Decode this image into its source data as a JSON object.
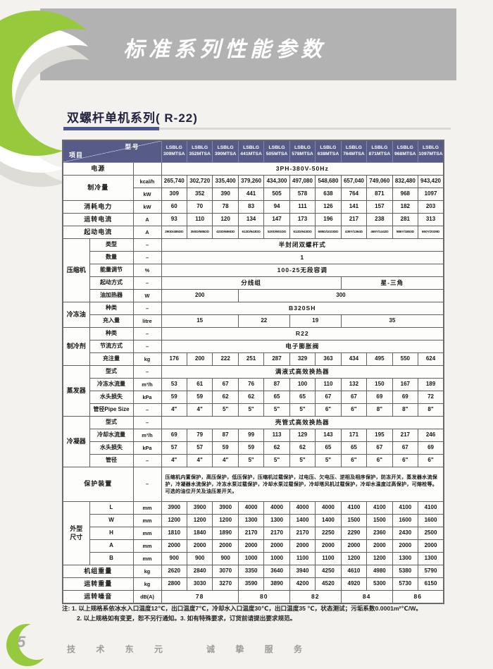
{
  "page": {
    "banner_title": "标准系列性能参数",
    "section_title": "双螺杆单机系列( R-22)",
    "page_number": "5",
    "footer_text": "技 术 东 元   诚 挚 服 务"
  },
  "colors": {
    "header_bg": "#565b87",
    "banner_gray": "#b2b2b2",
    "accent_green": "#97c93d",
    "rule_dark": "#4d5590"
  },
  "table": {
    "corner_top": "型号",
    "corner_bottom": "项目",
    "brand": "LSBLG",
    "models": [
      "309MTSA",
      "352MTSA",
      "390MTSA",
      "441MTSA",
      "505MTSA",
      "578MTSA",
      "638MTSA",
      "764MTSA",
      "871MTSA",
      "968MTSA",
      "1097MTSA"
    ],
    "rows": [
      [
        {
          "t": "电源",
          "c": 2,
          "k": "lbl",
          "n": "row-label-power"
        },
        {
          "t": "",
          "k": "unit"
        },
        {
          "t": "3PH-380V-50Hz",
          "c": 11,
          "k": "b"
        }
      ],
      [
        {
          "t": "制冷量",
          "c": 2,
          "r": 2,
          "k": "lbl",
          "n": "row-label-cooling-capacity"
        },
        {
          "t": "kcal/h",
          "k": "unit"
        },
        "265,740",
        "302,720",
        "335,400",
        "379,260",
        "434,300",
        "497,080",
        "548,680",
        "657,040",
        "749,060",
        "832,480",
        "943,420"
      ],
      [
        {
          "t": "kW",
          "k": "unit"
        },
        "309",
        "352",
        "390",
        "441",
        "505",
        "578",
        "638",
        "764",
        "871",
        "968",
        "1097"
      ],
      [
        {
          "t": "消耗电力",
          "c": 2,
          "k": "lbl",
          "n": "row-label-power-consumption"
        },
        {
          "t": "kW",
          "k": "unit"
        },
        "60",
        "70",
        "78",
        "83",
        "94",
        "111",
        "126",
        "141",
        "157",
        "182",
        "203"
      ],
      [
        {
          "t": "运转电流",
          "c": 2,
          "k": "lbl",
          "n": "row-label-running-current"
        },
        {
          "t": "A",
          "k": "unit"
        },
        "93",
        "110",
        "120",
        "134",
        "147",
        "173",
        "196",
        "217",
        "238",
        "281",
        "313"
      ],
      [
        {
          "t": "起动电流",
          "c": 2,
          "k": "lbl",
          "n": "row-label-starting-current"
        },
        {
          "t": "A",
          "k": "unit"
        },
        {
          "t": "290D/485DD",
          "k": "tiny"
        },
        {
          "t": "350D/585DD",
          "k": "tiny"
        },
        {
          "t": "423D/686DD",
          "k": "tiny"
        },
        {
          "t": "612D/943DD",
          "k": "tiny"
        },
        {
          "t": "520D/801DD",
          "k": "tiny"
        },
        {
          "t": "612D/943DD",
          "k": "tiny"
        },
        {
          "t": "685D/1023DD",
          "k": "tiny"
        },
        {
          "t": "436Y/1364D",
          "k": "tiny"
        },
        {
          "t": "465Y/1442D",
          "k": "tiny"
        },
        {
          "t": "586Y/1853D",
          "k": "tiny"
        },
        {
          "t": "650Y/2029D",
          "k": "tiny"
        }
      ],
      [
        {
          "t": "压缩机",
          "r": 5,
          "k": "grp",
          "n": "group-label-compressor"
        },
        {
          "t": "类型",
          "k": "lbl2"
        },
        {
          "t": "–",
          "k": "unit"
        },
        {
          "t": "半封闭双螺杆式",
          "c": 11,
          "k": "b"
        }
      ],
      [
        {
          "t": "数量",
          "k": "lbl2"
        },
        {
          "t": "–",
          "k": "unit"
        },
        {
          "t": "1",
          "c": 11,
          "k": "b"
        }
      ],
      [
        {
          "t": "能量调节",
          "k": "lbl2"
        },
        {
          "t": "%",
          "k": "unit"
        },
        {
          "t": "100-25无段容调",
          "c": 11,
          "k": "b"
        }
      ],
      [
        {
          "t": "起动方式",
          "k": "lbl2"
        },
        {
          "t": "–",
          "k": "unit"
        },
        {
          "t": "分线组",
          "c": 7,
          "k": "b"
        },
        {
          "t": "星-三角",
          "c": 4,
          "k": "b"
        }
      ],
      [
        {
          "t": "油加热器",
          "k": "lbl2"
        },
        {
          "t": "W",
          "k": "unit"
        },
        {
          "t": "200",
          "c": 3
        },
        {
          "t": "300",
          "c": 8
        }
      ],
      [
        {
          "t": "冷冻油",
          "r": 2,
          "k": "grp",
          "n": "group-label-refrigerant-oil"
        },
        {
          "t": "种类",
          "k": "lbl2"
        },
        {
          "t": "–",
          "k": "unit"
        },
        {
          "t": "B320SH",
          "c": 11,
          "k": "b"
        }
      ],
      [
        {
          "t": "充入量",
          "k": "lbl2"
        },
        {
          "t": "litre",
          "k": "unit"
        },
        {
          "t": "15",
          "c": 3
        },
        {
          "t": "22",
          "c": 2
        },
        {
          "t": "19",
          "c": 2
        },
        {
          "t": "35",
          "c": 4
        }
      ],
      [
        {
          "t": "制冷剂",
          "r": 3,
          "k": "grp",
          "n": "group-label-refrigerant"
        },
        {
          "t": "种类",
          "k": "lbl2"
        },
        {
          "t": "–",
          "k": "unit"
        },
        {
          "t": "R22",
          "c": 11,
          "k": "b"
        }
      ],
      [
        {
          "t": "节流方式",
          "k": "lbl2"
        },
        {
          "t": "–",
          "k": "unit"
        },
        {
          "t": "电子膨胀阀",
          "c": 11,
          "k": "b"
        }
      ],
      [
        {
          "t": "充注量",
          "k": "lbl2"
        },
        {
          "t": "kg",
          "k": "unit"
        },
        "176",
        "200",
        "222",
        "251",
        "287",
        "329",
        "363",
        "434",
        "495",
        "550",
        "624"
      ],
      [
        {
          "t": "蒸发器",
          "r": 4,
          "k": "grp",
          "n": "group-label-evaporator"
        },
        {
          "t": "型式",
          "k": "lbl2"
        },
        {
          "t": "–",
          "k": "unit"
        },
        {
          "t": "满液式高效换热器",
          "c": 11,
          "k": "b"
        }
      ],
      [
        {
          "t": "冷冻水流量",
          "k": "lbl2"
        },
        {
          "t": "m³/h",
          "k": "unit"
        },
        "53",
        "61",
        "67",
        "76",
        "87",
        "100",
        "110",
        "132",
        "150",
        "167",
        "189"
      ],
      [
        {
          "t": "水头损失",
          "k": "lbl2"
        },
        {
          "t": "kPa",
          "k": "unit"
        },
        "59",
        "59",
        "62",
        "62",
        "65",
        "65",
        "67",
        "67",
        "69",
        "69",
        "72"
      ],
      [
        {
          "t": "管径Pipe Size",
          "k": "lbl2"
        },
        {
          "t": "–",
          "k": "unit"
        },
        {
          "t": "4\"",
          "k": "pipe"
        },
        {
          "t": "4\"",
          "k": "pipe"
        },
        {
          "t": "5\"",
          "k": "pipe"
        },
        {
          "t": "5\"",
          "k": "pipe"
        },
        {
          "t": "5\"",
          "k": "pipe"
        },
        {
          "t": "5\"",
          "k": "pipe"
        },
        {
          "t": "6\"",
          "k": "pipe"
        },
        {
          "t": "6\"",
          "k": "pipe"
        },
        {
          "t": "8\"",
          "k": "pipe"
        },
        {
          "t": "8\"",
          "k": "pipe"
        },
        {
          "t": "8\"",
          "k": "pipe"
        }
      ],
      [
        {
          "t": "冷凝器",
          "r": 4,
          "k": "grp",
          "n": "group-label-condenser"
        },
        {
          "t": "型式",
          "k": "lbl2"
        },
        {
          "t": "–",
          "k": "unit"
        },
        {
          "t": "壳管式高效换热器",
          "c": 11,
          "k": "b"
        }
      ],
      [
        {
          "t": "冷却水流量",
          "k": "lbl2"
        },
        {
          "t": "m³/h",
          "k": "unit"
        },
        "69",
        "79",
        "87",
        "99",
        "113",
        "129",
        "143",
        "171",
        "195",
        "217",
        "246"
      ],
      [
        {
          "t": "水头损失",
          "k": "lbl2"
        },
        {
          "t": "kPa",
          "k": "unit"
        },
        "57",
        "57",
        "59",
        "59",
        "62",
        "62",
        "65",
        "65",
        "67",
        "67",
        "69"
      ],
      [
        {
          "t": "管径",
          "k": "lbl2"
        },
        {
          "t": "–",
          "k": "unit"
        },
        {
          "t": "4\"",
          "k": "pipe"
        },
        {
          "t": "4\"",
          "k": "pipe"
        },
        {
          "t": "4\"",
          "k": "pipe"
        },
        {
          "t": "5\"",
          "k": "pipe"
        },
        {
          "t": "5\"",
          "k": "pipe"
        },
        {
          "t": "5\"",
          "k": "pipe"
        },
        {
          "t": "5\"",
          "k": "pipe"
        },
        {
          "t": "6\"",
          "k": "pipe"
        },
        {
          "t": "6\"",
          "k": "pipe"
        },
        {
          "t": "6\"",
          "k": "pipe"
        },
        {
          "t": "6\"",
          "k": "pipe"
        }
      ],
      [
        {
          "t": "保护装置",
          "c": 2,
          "k": "lbl",
          "n": "row-label-protection"
        },
        {
          "t": "–",
          "k": "unit"
        },
        {
          "t": "压缩机内置保护，高压保护，低压保护，压缩机过载保护，过电压、欠电压、逆相及相序保护，防冻开关，蒸发器水流保护，冷凝器水流保护，冷冻水泵过载保护，冷却水泵过载保护，冷却塔风机过载保护，冷却水温度过高保护，可熔栓等。可选的油位开关及油压差开关。",
          "c": 11,
          "k": "txt"
        }
      ],
      [
        {
          "t": "外型\n尺寸",
          "r": 5,
          "k": "grp",
          "n": "group-label-dimensions"
        },
        {
          "t": "L",
          "k": "lbl2"
        },
        {
          "t": "mm",
          "k": "unit"
        },
        "3900",
        "3900",
        "3900",
        "4000",
        "4000",
        "4000",
        "4000",
        "4100",
        "4100",
        "4100",
        "4100"
      ],
      [
        {
          "t": "W",
          "k": "lbl2"
        },
        {
          "t": "mm",
          "k": "unit"
        },
        "1200",
        "1200",
        "1200",
        "1300",
        "1300",
        "1400",
        "1400",
        "1500",
        "1500",
        "1600",
        "1600"
      ],
      [
        {
          "t": "H",
          "k": "lbl2"
        },
        {
          "t": "mm",
          "k": "unit"
        },
        "1810",
        "1840",
        "1890",
        "2170",
        "2170",
        "2170",
        "2250",
        "2290",
        "2360",
        "2430",
        "2500"
      ],
      [
        {
          "t": "A",
          "k": "lbl2"
        },
        {
          "t": "mm",
          "k": "unit"
        },
        "2000",
        "2000",
        "2000",
        "2000",
        "2000",
        "2000",
        "2000",
        "2000",
        "2000",
        "2000",
        "2000"
      ],
      [
        {
          "t": "B",
          "k": "lbl2"
        },
        {
          "t": "mm",
          "k": "unit"
        },
        "900",
        "900",
        "900",
        "1000",
        "1000",
        "1100",
        "1100",
        "1200",
        "1200",
        "1300",
        "1300"
      ],
      [
        {
          "t": "机组重量",
          "c": 2,
          "k": "lbl",
          "n": "row-label-unit-weight"
        },
        {
          "t": "kg",
          "k": "unit"
        },
        "2620",
        "2840",
        "3070",
        "3350",
        "3640",
        "3940",
        "4250",
        "4610",
        "4980",
        "5380",
        "5790"
      ],
      [
        {
          "t": "运转重量",
          "c": 2,
          "k": "lbl",
          "n": "row-label-operating-weight"
        },
        {
          "t": "kg",
          "k": "unit"
        },
        "2800",
        "3030",
        "3270",
        "3590",
        "3890",
        "4200",
        "4520",
        "4920",
        "5300",
        "5730",
        "6150"
      ],
      [
        {
          "t": "运转噪音",
          "c": 2,
          "k": "lbl",
          "n": "row-label-noise"
        },
        {
          "t": "dB(A)",
          "k": "unit"
        },
        {
          "t": "78",
          "c": 3,
          "k": "b"
        },
        {
          "t": "80",
          "c": 2,
          "k": "b"
        },
        {
          "t": "82",
          "c": 2,
          "k": "b"
        },
        {
          "t": "84",
          "c": 2,
          "k": "b"
        },
        {
          "t": "86",
          "c": 2,
          "k": "b"
        }
      ]
    ]
  },
  "notes": {
    "line1": "注: 1. 以上规格系依冰水入口温度12℃，出口温度7℃，冷却水入口温度30℃，出口温度35 ℃，状态测试；污垢系数0.0001m²℃/W。",
    "line2": "2. 以上规格如有变更，恕不另行通知。3. 如有特殊要求，订货前请提出要求规范。"
  }
}
